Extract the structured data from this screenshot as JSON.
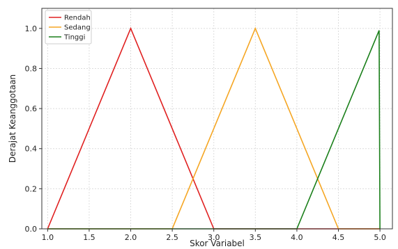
{
  "chart_data": {
    "type": "line",
    "title": "",
    "xlabel": "Skor Variabel",
    "ylabel": "Derajat Keanggotaan",
    "xlim": [
      0.93,
      5.15
    ],
    "ylim": [
      0.0,
      1.1
    ],
    "xticks": [
      "1.0",
      "1.5",
      "2.0",
      "2.5",
      "3.0",
      "3.5",
      "4.0",
      "4.5",
      "5.0"
    ],
    "yticks": [
      "0.0",
      "0.2",
      "0.4",
      "0.6",
      "0.8",
      "1.0"
    ],
    "grid": true,
    "legend_position": "top-left",
    "series": [
      {
        "name": "Rendah",
        "color": "#e02020",
        "x": [
          1.0,
          2.0,
          3.0,
          5.0
        ],
        "y": [
          0.0,
          1.0,
          0.0,
          0.0
        ]
      },
      {
        "name": "Sedang",
        "color": "#f5a623",
        "x": [
          1.0,
          2.5,
          3.5,
          4.5,
          5.0
        ],
        "y": [
          0.0,
          0.0,
          1.0,
          0.0,
          0.0
        ]
      },
      {
        "name": "Tinggi",
        "color": "#1a7f1a",
        "x": [
          1.0,
          4.0,
          4.99,
          5.0
        ],
        "y": [
          0.0,
          0.0,
          0.99,
          0.0
        ]
      }
    ]
  }
}
